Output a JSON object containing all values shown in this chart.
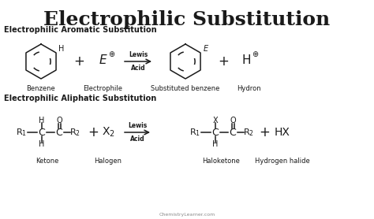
{
  "title": "Electrophilic Substitution",
  "title_fontsize": 18,
  "title_fontweight": "bold",
  "bg_color": "#ffffff",
  "text_color": "#1a1a1a",
  "section1_label": "Electrophilic Aromatic Substitution",
  "section2_label": "Electrophilic Aliphatic Substitution",
  "watermark": "ChemistryLearner.com"
}
